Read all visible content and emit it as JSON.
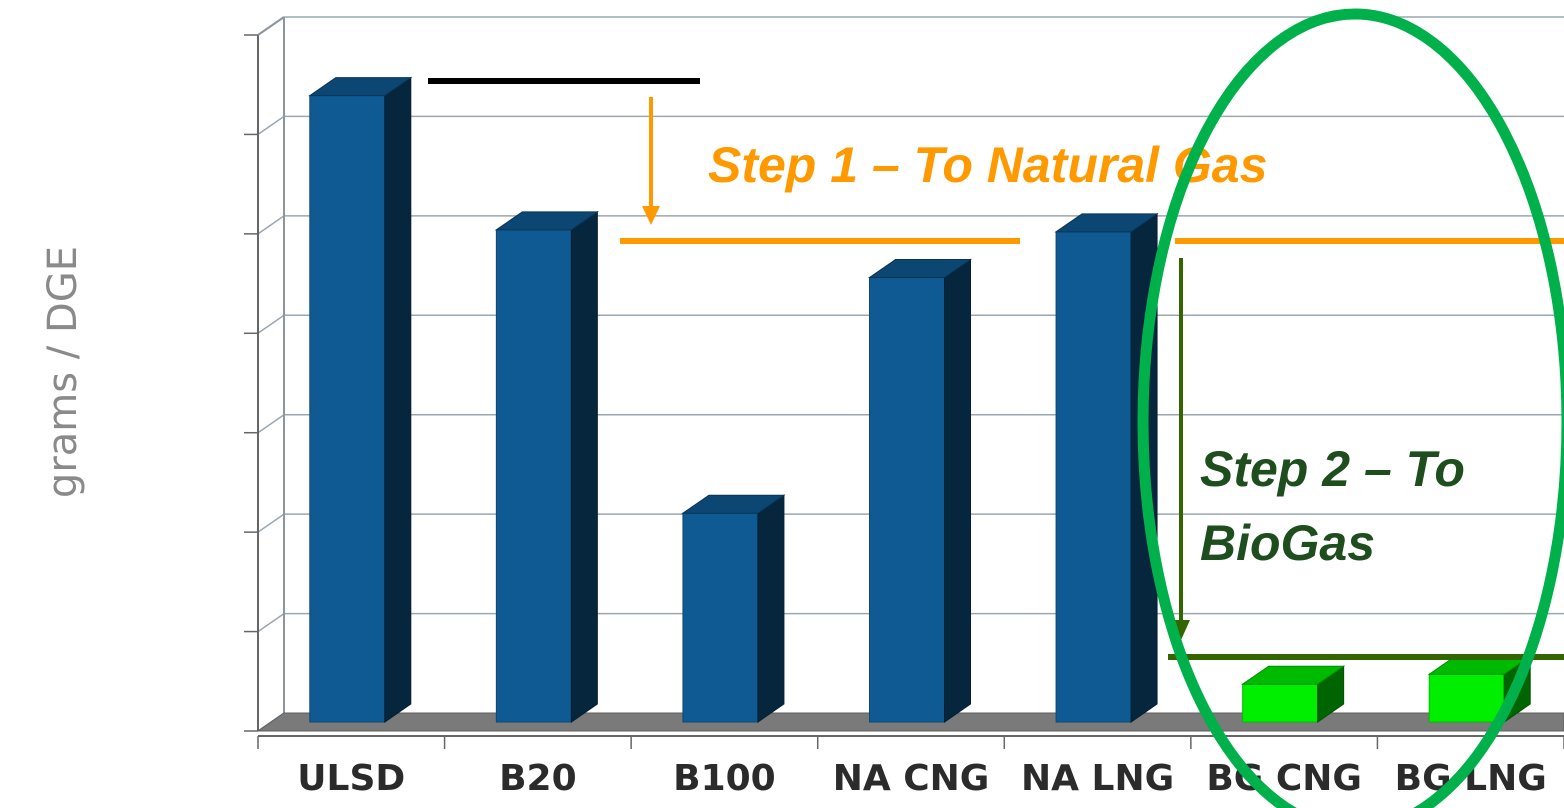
{
  "chart_data": {
    "type": "bar",
    "ylabel": "grams / DGE",
    "categories": [
      "ULSD",
      "B20",
      "B100",
      "NA CNG",
      "NA LNG",
      "BG CNG",
      "BG LNG"
    ],
    "values": [
      6.3,
      4.95,
      2.1,
      4.47,
      4.93,
      0.38,
      0.48
    ],
    "ylim": [
      0,
      7
    ],
    "grid": true,
    "bar_colors": [
      "#0f5a92",
      "#0f5a92",
      "#0f5a92",
      "#0f5a92",
      "#0f5a92",
      "#00ee00",
      "#00ee00"
    ],
    "annotations": {
      "step1_label": "Step 1 – To Natural Gas",
      "step2_line1": "Step 2 – To",
      "step2_line2": "BioGas"
    }
  }
}
